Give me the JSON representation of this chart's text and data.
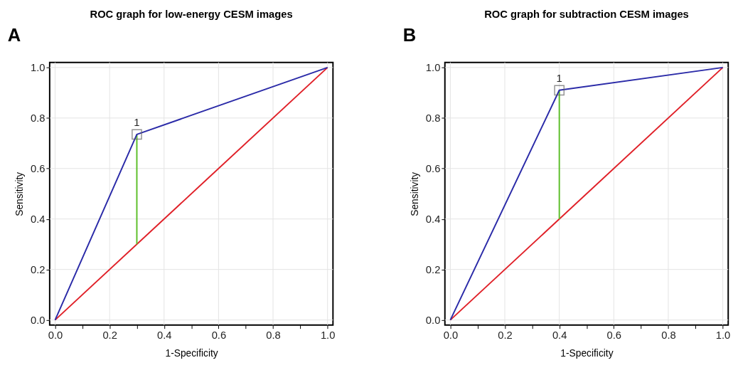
{
  "chart_data": [
    {
      "type": "line",
      "title": "ROC graph for low-energy CESM images",
      "xlabel": "1-Specificity",
      "ylabel": "Sensitivity",
      "xlim": [
        -0.02,
        1.02
      ],
      "ylim": [
        -0.02,
        1.02
      ],
      "xticks": [
        {
          "value": 0,
          "label": "0.0"
        },
        {
          "value": 0.1,
          "label": null
        },
        {
          "value": 0.2,
          "label": "0.2"
        },
        {
          "value": 0.3,
          "label": null
        },
        {
          "value": 0.4,
          "label": "0.4"
        },
        {
          "value": 0.5,
          "label": null
        },
        {
          "value": 0.6,
          "label": "0.6"
        },
        {
          "value": 0.7,
          "label": null
        },
        {
          "value": 0.8,
          "label": "0.8"
        },
        {
          "value": 0.9,
          "label": null
        },
        {
          "value": 1,
          "label": "1.0"
        }
      ],
      "yticks": [
        {
          "value": 0,
          "label": "0.0"
        },
        {
          "value": 0.2,
          "label": "0.2"
        },
        {
          "value": 0.4,
          "label": "0.4"
        },
        {
          "value": 0.6,
          "label": "0.6"
        },
        {
          "value": 0.8,
          "label": "0.8"
        },
        {
          "value": 1,
          "label": "1.0"
        }
      ],
      "grid": true,
      "series": [
        {
          "type": "line",
          "color": "#e02028",
          "x": [
            0,
            1
          ],
          "values": [
            0,
            1
          ]
        },
        {
          "type": "line",
          "color": "#5cbf2a",
          "x": [
            0.3,
            0.3
          ],
          "values": [
            0.3,
            0.735
          ]
        },
        {
          "type": "line",
          "color": "#2b2ba8",
          "x": [
            0,
            0.3,
            1
          ],
          "values": [
            0,
            0.735,
            1
          ]
        },
        {
          "type": "scatter",
          "color": "#666666",
          "marker": "square",
          "x": [
            0.3
          ],
          "values": [
            0.735
          ]
        }
      ],
      "annotations": [
        "A",
        {
          "text": "1",
          "x": 0.3,
          "y": 0.735
        }
      ]
    },
    {
      "type": "line",
      "title": "ROC graph for subtraction CESM images",
      "xlabel": "1-Specificity",
      "ylabel": "Sensitivity",
      "xlim": [
        -0.02,
        1.02
      ],
      "ylim": [
        -0.02,
        1.02
      ],
      "xticks": [
        {
          "value": 0,
          "label": "0.0"
        },
        {
          "value": 0.1,
          "label": null
        },
        {
          "value": 0.2,
          "label": "0.2"
        },
        {
          "value": 0.3,
          "label": null
        },
        {
          "value": 0.4,
          "label": "0.4"
        },
        {
          "value": 0.5,
          "label": null
        },
        {
          "value": 0.6,
          "label": "0.6"
        },
        {
          "value": 0.7,
          "label": null
        },
        {
          "value": 0.8,
          "label": "0.8"
        },
        {
          "value": 0.9,
          "label": null
        },
        {
          "value": 1,
          "label": "1.0"
        }
      ],
      "yticks": [
        {
          "value": 0,
          "label": "0.0"
        },
        {
          "value": 0.2,
          "label": "0.2"
        },
        {
          "value": 0.4,
          "label": "0.4"
        },
        {
          "value": 0.6,
          "label": "0.6"
        },
        {
          "value": 0.8,
          "label": "0.8"
        },
        {
          "value": 1,
          "label": "1.0"
        }
      ],
      "grid": true,
      "series": [
        {
          "type": "line",
          "color": "#e02028",
          "x": [
            0,
            1
          ],
          "values": [
            0,
            1
          ]
        },
        {
          "type": "line",
          "color": "#5cbf2a",
          "x": [
            0.4,
            0.4
          ],
          "values": [
            0.4,
            0.91
          ]
        },
        {
          "type": "line",
          "color": "#2b2ba8",
          "x": [
            0,
            0.4,
            1
          ],
          "values": [
            0,
            0.91,
            1
          ]
        },
        {
          "type": "scatter",
          "color": "#666666",
          "marker": "square",
          "x": [
            0.4
          ],
          "values": [
            0.91
          ]
        }
      ],
      "annotations": [
        "B",
        {
          "text": "1",
          "x": 0.4,
          "y": 0.91
        }
      ]
    }
  ]
}
